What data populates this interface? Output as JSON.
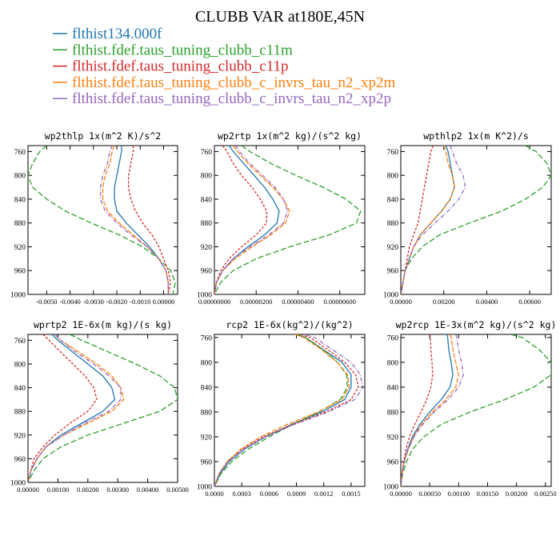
{
  "figure": {
    "title": "CLUBB VAR at180E,45N",
    "legend": [
      {
        "label": "flthist134.000f",
        "color": "#1f77b4"
      },
      {
        "label": "flthist.fdef.taus_tuning_clubb_c11m",
        "color": "#2ca02c"
      },
      {
        "label": "flthist.fdef.taus_tuning_clubb_c11p",
        "color": "#d62728"
      },
      {
        "label": "flthist.fdef.taus_tuning_clubb_c_invrs_tau_n2_xp2m",
        "color": "#ff7f0e"
      },
      {
        "label": "flthist.fdef.taus_tuning_clubb_c_invrs_tau_n2_xp2p",
        "color": "#9467bd"
      }
    ]
  },
  "chart_data": [
    {
      "type": "line",
      "title": "wp2thlp  1x(m^2 K)/s^2",
      "xlim": [
        -0.0058,
        0.0006
      ],
      "ylim": [
        1000,
        750
      ],
      "y_ticks": [
        760,
        800,
        840,
        880,
        920,
        960,
        1000
      ],
      "x_ticks": [
        -0.005,
        -0.004,
        -0.003,
        -0.002,
        -0.001,
        0.0
      ],
      "x_tick_labels": [
        "-0.0050",
        "-0.0040",
        "-0.0030",
        "-0.0020",
        "-0.0010",
        "0.00000"
      ],
      "y": [
        750,
        760,
        780,
        800,
        820,
        840,
        860,
        880,
        900,
        920,
        940,
        960,
        980,
        1000
      ],
      "series": [
        {
          "name": "flthist134.000f",
          "values": [
            -0.0018,
            -0.0018,
            -0.0019,
            -0.002,
            -0.0021,
            -0.0021,
            -0.002,
            -0.0016,
            -0.0011,
            -0.0006,
            -0.0002,
            0.0001,
            0.0002,
            0.0002
          ]
        },
        {
          "name": "flthist.fdef.taus_tuning_clubb_c11m",
          "values": [
            -0.005,
            -0.0053,
            -0.0056,
            -0.0058,
            -0.0056,
            -0.005,
            -0.0042,
            -0.0031,
            -0.0019,
            -0.0009,
            -0.0002,
            0.0003,
            0.0005,
            0.0004
          ]
        },
        {
          "name": "flthist.fdef.taus_tuning_clubb_c11p",
          "values": [
            -0.0013,
            -0.0013,
            -0.0014,
            -0.0015,
            -0.0015,
            -0.0014,
            -0.0012,
            -0.0009,
            -0.0005,
            -0.0002,
            0.0,
            0.0002,
            0.0003,
            0.0002
          ]
        },
        {
          "name": "flthist.fdef.taus_tuning_clubb_c_invrs_tau_n2_xp2m",
          "values": [
            -0.0021,
            -0.0022,
            -0.0023,
            -0.0025,
            -0.0026,
            -0.0026,
            -0.0024,
            -0.0019,
            -0.0013,
            -0.0007,
            -0.0002,
            0.0001,
            0.0002,
            0.0002
          ]
        },
        {
          "name": "flthist.fdef.taus_tuning_clubb_c_invrs_tau_n2_xp2p",
          "values": [
            -0.0022,
            -0.0023,
            -0.0024,
            -0.0026,
            -0.0027,
            -0.0027,
            -0.0025,
            -0.002,
            -0.0014,
            -0.0007,
            -0.0002,
            0.0001,
            0.0002,
            0.0002
          ]
        }
      ]
    },
    {
      "type": "line",
      "title": "wp2rtp  1x(m^2 kg)/(s^2 kg)",
      "xlim": [
        0.0,
        7.2e-06
      ],
      "ylim": [
        1000,
        750
      ],
      "y_ticks": [
        760,
        800,
        840,
        880,
        920,
        960,
        1000
      ],
      "x_ticks": [
        0.0,
        2e-06,
        4e-06,
        6e-06
      ],
      "x_tick_labels": [
        "0.00000000",
        "0.00000200",
        "0.00000400",
        "0.00000600"
      ],
      "y": [
        750,
        760,
        780,
        800,
        820,
        840,
        860,
        880,
        900,
        920,
        940,
        960,
        980,
        1000
      ],
      "series": [
        {
          "name": "flthist134.000f",
          "values": [
            7e-07,
            9e-07,
            1.4e-06,
            1.9e-06,
            2.4e-06,
            2.8e-06,
            3.1e-06,
            3e-06,
            2.4e-06,
            1.6e-06,
            9e-07,
            4e-07,
            1e-07,
            0.0
          ]
        },
        {
          "name": "flthist.fdef.taus_tuning_clubb_c11m",
          "values": [
            1.3e-06,
            1.7e-06,
            2.7e-06,
            3.9e-06,
            5.2e-06,
            6.3e-06,
            7e-06,
            6.8e-06,
            5.5e-06,
            3.6e-06,
            2e-06,
            9e-07,
            3e-07,
            0.0
          ]
        },
        {
          "name": "flthist.fdef.taus_tuning_clubb_c11p",
          "values": [
            4e-07,
            6e-07,
            9e-07,
            1.3e-06,
            1.8e-06,
            2.2e-06,
            2.5e-06,
            2.5e-06,
            2e-06,
            1.3e-06,
            7e-07,
            3e-07,
            1e-07,
            0.0
          ]
        },
        {
          "name": "flthist.fdef.taus_tuning_clubb_c_invrs_tau_n2_xp2m",
          "values": [
            9e-07,
            1.1e-06,
            1.6e-06,
            2.2e-06,
            2.8e-06,
            3.3e-06,
            3.6e-06,
            3.4e-06,
            2.7e-06,
            1.8e-06,
            1e-06,
            4e-07,
            1e-07,
            0.0
          ]
        },
        {
          "name": "flthist.fdef.taus_tuning_clubb_c_invrs_tau_n2_xp2p",
          "values": [
            1e-06,
            1.2e-06,
            1.7e-06,
            2.3e-06,
            2.9e-06,
            3.3e-06,
            3.5e-06,
            3.3e-06,
            2.6e-06,
            1.7e-06,
            9e-07,
            4e-07,
            1e-07,
            0.0
          ]
        }
      ]
    },
    {
      "type": "line",
      "title": "wpthlp2  1x(m K^2)/s",
      "xlim": [
        0.0,
        0.007
      ],
      "ylim": [
        1000,
        750
      ],
      "y_ticks": [
        760,
        800,
        840,
        880,
        920,
        960,
        1000
      ],
      "x_ticks": [
        0.0,
        0.002,
        0.004,
        0.006
      ],
      "x_tick_labels": [
        "0.00000",
        "0.00200",
        "0.00400",
        "0.00600"
      ],
      "y": [
        750,
        760,
        780,
        800,
        820,
        840,
        860,
        880,
        900,
        920,
        940,
        960,
        980,
        1000
      ],
      "series": [
        {
          "name": "flthist134.000f",
          "values": [
            0.0021,
            0.0022,
            0.0023,
            0.0024,
            0.0025,
            0.0023,
            0.0019,
            0.0014,
            0.0009,
            0.0006,
            0.0004,
            0.0002,
            0.0001,
            0.0
          ]
        },
        {
          "name": "flthist.fdef.taus_tuning_clubb_c11m",
          "values": [
            0.0058,
            0.0063,
            0.0068,
            0.007,
            0.0066,
            0.0058,
            0.0047,
            0.0032,
            0.0018,
            0.001,
            0.0005,
            0.0002,
            0.0001,
            0.0
          ]
        },
        {
          "name": "flthist.fdef.taus_tuning_clubb_c11p",
          "values": [
            0.0015,
            0.0014,
            0.0013,
            0.0012,
            0.0011,
            0.001,
            0.0009,
            0.0008,
            0.0006,
            0.0004,
            0.0003,
            0.0002,
            0.0001,
            0.0
          ]
        },
        {
          "name": "flthist.fdef.taus_tuning_clubb_c_invrs_tau_n2_xp2m",
          "values": [
            0.002,
            0.0021,
            0.0022,
            0.0024,
            0.0025,
            0.0023,
            0.0019,
            0.0014,
            0.0009,
            0.0006,
            0.0004,
            0.0002,
            0.0001,
            0.0
          ]
        },
        {
          "name": "flthist.fdef.taus_tuning_clubb_c_invrs_tau_n2_xp2p",
          "values": [
            0.0023,
            0.0024,
            0.0026,
            0.0029,
            0.003,
            0.0027,
            0.0022,
            0.0016,
            0.001,
            0.0006,
            0.0004,
            0.0002,
            0.0001,
            0.0
          ]
        }
      ]
    },
    {
      "type": "line",
      "title": "wprtp2  1E-6x(m kg)/(s kg)",
      "xlim": [
        0.0,
        0.005
      ],
      "ylim": [
        1000,
        750
      ],
      "y_ticks": [
        760,
        800,
        840,
        880,
        920,
        960,
        1000
      ],
      "x_ticks": [
        0.0,
        0.001,
        0.002,
        0.003,
        0.004,
        0.005
      ],
      "x_tick_labels": [
        "0.00000",
        "0.00100",
        "0.00200",
        "0.00300",
        "0.00400",
        "0.00500"
      ],
      "y": [
        750,
        760,
        780,
        800,
        820,
        840,
        860,
        880,
        900,
        920,
        940,
        960,
        980,
        1000
      ],
      "series": [
        {
          "name": "flthist134.000f",
          "values": [
            0.0008,
            0.001,
            0.0015,
            0.002,
            0.0025,
            0.0028,
            0.0029,
            0.0025,
            0.0018,
            0.0011,
            0.0006,
            0.0003,
            0.0001,
            0.0
          ]
        },
        {
          "name": "flthist.fdef.taus_tuning_clubb_c11m",
          "values": [
            0.0014,
            0.0018,
            0.0027,
            0.0036,
            0.0044,
            0.0049,
            0.005,
            0.0044,
            0.0032,
            0.002,
            0.0011,
            0.0005,
            0.0002,
            0.0
          ]
        },
        {
          "name": "flthist.fdef.taus_tuning_clubb_c11p",
          "values": [
            0.0005,
            0.0007,
            0.0011,
            0.0015,
            0.0019,
            0.0022,
            0.0023,
            0.002,
            0.0014,
            0.0009,
            0.0005,
            0.0002,
            0.0001,
            0.0
          ]
        },
        {
          "name": "flthist.fdef.taus_tuning_clubb_c_invrs_tau_n2_xp2m",
          "values": [
            0.0009,
            0.0011,
            0.0017,
            0.0023,
            0.0028,
            0.0031,
            0.0032,
            0.0028,
            0.002,
            0.0012,
            0.0006,
            0.0003,
            0.0001,
            0.0
          ]
        },
        {
          "name": "flthist.fdef.taus_tuning_clubb_c_invrs_tau_n2_xp2p",
          "values": [
            0.0009,
            0.0011,
            0.0016,
            0.0022,
            0.0027,
            0.0031,
            0.0031,
            0.0027,
            0.0019,
            0.0012,
            0.0006,
            0.0003,
            0.0001,
            0.0
          ]
        }
      ]
    },
    {
      "type": "line",
      "title": "rcp2  1E-6x(kg^2)/(kg^2)",
      "xlim": [
        0.0,
        0.00165
      ],
      "ylim": [
        1000,
        755
      ],
      "y_ticks": [
        760,
        800,
        840,
        880,
        920,
        960,
        1000
      ],
      "x_ticks": [
        0.0,
        0.0003,
        0.0006,
        0.0009,
        0.0012,
        0.0015
      ],
      "x_tick_labels": [
        "0.0000",
        "0.0003",
        "0.0006",
        "0.0009",
        "0.0012",
        "0.0015"
      ],
      "y": [
        755,
        760,
        780,
        800,
        820,
        840,
        860,
        880,
        900,
        920,
        940,
        960,
        980,
        1000
      ],
      "series": [
        {
          "name": "flthist134.000f",
          "values": [
            0.0009,
            0.001,
            0.0012,
            0.0014,
            0.0015,
            0.0015,
            0.00143,
            0.00118,
            0.00085,
            0.00056,
            0.00033,
            0.00016,
            6e-05,
            0.0
          ]
        },
        {
          "name": "flthist.fdef.taus_tuning_clubb_c11m",
          "values": [
            0.0009,
            0.001,
            0.0012,
            0.00135,
            0.00145,
            0.00146,
            0.00138,
            0.00115,
            0.00086,
            0.0006,
            0.00037,
            0.00019,
            7e-05,
            0.0
          ]
        },
        {
          "name": "flthist.fdef.taus_tuning_clubb_c11p",
          "values": [
            0.00095,
            0.00105,
            0.00125,
            0.00143,
            0.00155,
            0.00158,
            0.0015,
            0.00122,
            0.00086,
            0.00054,
            0.0003,
            0.00014,
            5e-05,
            0.0
          ]
        },
        {
          "name": "flthist.fdef.taus_tuning_clubb_c_invrs_tau_n2_xp2m",
          "values": [
            0.00088,
            0.00098,
            0.00118,
            0.00135,
            0.00146,
            0.00148,
            0.0014,
            0.00114,
            0.0008,
            0.00051,
            0.00029,
            0.00014,
            5e-05,
            0.0
          ]
        },
        {
          "name": "flthist.fdef.taus_tuning_clubb_c_invrs_tau_n2_xp2p",
          "values": [
            0.001,
            0.0011,
            0.0013,
            0.0015,
            0.0016,
            0.00163,
            0.00154,
            0.00125,
            0.00088,
            0.00056,
            0.00032,
            0.00015,
            5e-05,
            0.0
          ]
        }
      ]
    },
    {
      "type": "line",
      "title": "wp2rcp  1E-3x(m^2 kg)/(s^2 kg)",
      "xlim": [
        0.0,
        0.0026
      ],
      "ylim": [
        1000,
        755
      ],
      "y_ticks": [
        760,
        800,
        840,
        880,
        920,
        960,
        1000
      ],
      "x_ticks": [
        0.0,
        0.0005,
        0.001,
        0.0015,
        0.002,
        0.0025
      ],
      "x_tick_labels": [
        "0.00000",
        "0.00050",
        "0.00100",
        "0.00150",
        "0.00200",
        "0.00250"
      ],
      "y": [
        755,
        760,
        780,
        800,
        820,
        840,
        860,
        880,
        900,
        920,
        940,
        960,
        980,
        1000
      ],
      "series": [
        {
          "name": "flthist134.000f",
          "values": [
            0.0008,
            0.00081,
            0.00083,
            0.00087,
            0.0009,
            0.00085,
            0.0007,
            0.0005,
            0.00033,
            0.0002,
            0.00012,
            6e-05,
            2e-05,
            0.0
          ]
        },
        {
          "name": "flthist.fdef.taus_tuning_clubb_c11m",
          "values": [
            0.0019,
            0.0021,
            0.0024,
            0.0026,
            0.0026,
            0.0023,
            0.0018,
            0.0012,
            0.0007,
            0.0004,
            0.0002,
            0.0001,
            3e-05,
            0.0
          ]
        },
        {
          "name": "flthist.fdef.taus_tuning_clubb_c11p",
          "values": [
            0.0005,
            0.00051,
            0.00052,
            0.00054,
            0.00055,
            0.00052,
            0.00045,
            0.00035,
            0.00024,
            0.00015,
            9e-05,
            5e-05,
            2e-05,
            0.0
          ]
        },
        {
          "name": "flthist.fdef.taus_tuning_clubb_c_invrs_tau_n2_xp2m",
          "values": [
            0.00085,
            0.00087,
            0.0009,
            0.00095,
            0.001,
            0.00095,
            0.00078,
            0.00055,
            0.00036,
            0.00022,
            0.00013,
            6e-05,
            2e-05,
            0.0
          ]
        },
        {
          "name": "flthist.fdef.taus_tuning_clubb_c_invrs_tau_n2_xp2p",
          "values": [
            0.00095,
            0.00097,
            0.001,
            0.00105,
            0.00108,
            0.001,
            0.00082,
            0.00058,
            0.00038,
            0.00023,
            0.00013,
            6e-05,
            2e-05,
            0.0
          ]
        }
      ]
    }
  ]
}
